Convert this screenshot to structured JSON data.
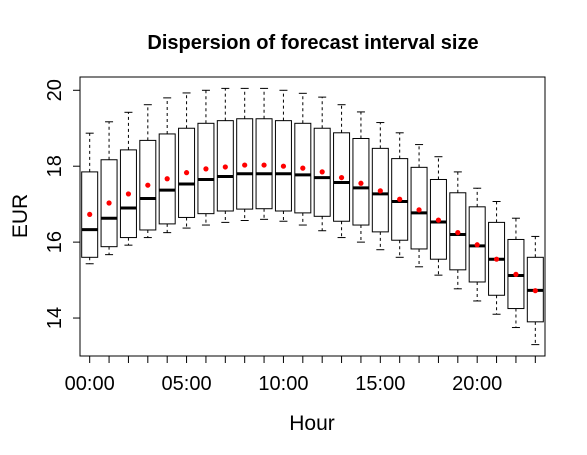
{
  "chart_data": {
    "type": "box",
    "title": "Dispersion of forecast interval size",
    "xlabel": "Hour",
    "ylabel": "EUR",
    "ylim": [
      13,
      20.35
    ],
    "xlim": [
      -0.5,
      23.5
    ],
    "yticks": [
      14,
      16,
      18,
      20
    ],
    "xtick_positions": [
      0,
      5,
      10,
      15,
      20
    ],
    "xtick_labels": [
      "00:00",
      "05:00",
      "10:00",
      "15:00",
      "20:00"
    ],
    "grid": false,
    "legend": "none",
    "colors": {
      "box": "#000000",
      "mean": "#ff0000",
      "median": "#000000"
    },
    "hours": [
      0,
      1,
      2,
      3,
      4,
      5,
      6,
      7,
      8,
      9,
      10,
      11,
      12,
      13,
      14,
      15,
      16,
      17,
      18,
      19,
      20,
      21,
      22,
      23
    ],
    "whisker_low": [
      15.43,
      15.67,
      15.92,
      16.12,
      16.25,
      16.37,
      16.45,
      16.52,
      16.57,
      16.6,
      16.55,
      16.45,
      16.3,
      16.12,
      16.0,
      15.8,
      15.6,
      15.35,
      15.13,
      14.77,
      14.45,
      14.1,
      13.75,
      13.3
    ],
    "q1": [
      15.6,
      15.88,
      16.12,
      16.32,
      16.48,
      16.65,
      16.75,
      16.82,
      16.87,
      16.88,
      16.82,
      16.77,
      16.68,
      16.55,
      16.45,
      16.27,
      16.05,
      15.82,
      15.55,
      15.27,
      14.95,
      14.6,
      14.25,
      13.9
    ],
    "median": [
      16.33,
      16.63,
      16.9,
      17.15,
      17.37,
      17.53,
      17.65,
      17.73,
      17.8,
      17.8,
      17.8,
      17.77,
      17.7,
      17.57,
      17.43,
      17.27,
      17.07,
      16.77,
      16.53,
      16.2,
      15.9,
      15.55,
      15.12,
      14.73
    ],
    "q3": [
      17.85,
      18.17,
      18.43,
      18.68,
      18.85,
      19.0,
      19.13,
      19.2,
      19.25,
      19.25,
      19.2,
      19.13,
      19.0,
      18.88,
      18.73,
      18.47,
      18.2,
      17.97,
      17.65,
      17.3,
      16.93,
      16.52,
      16.07,
      15.6
    ],
    "whisker_high": [
      18.87,
      19.17,
      19.42,
      19.62,
      19.8,
      19.93,
      20.0,
      20.05,
      20.05,
      20.05,
      20.0,
      19.92,
      19.82,
      19.62,
      19.43,
      19.15,
      18.88,
      18.57,
      18.25,
      17.85,
      17.42,
      17.07,
      16.63,
      16.15
    ],
    "mean": [
      16.73,
      17.03,
      17.27,
      17.5,
      17.67,
      17.83,
      17.93,
      17.98,
      18.03,
      18.03,
      18.0,
      17.95,
      17.85,
      17.7,
      17.55,
      17.35,
      17.13,
      16.85,
      16.58,
      16.25,
      15.93,
      15.55,
      15.15,
      14.72
    ]
  }
}
